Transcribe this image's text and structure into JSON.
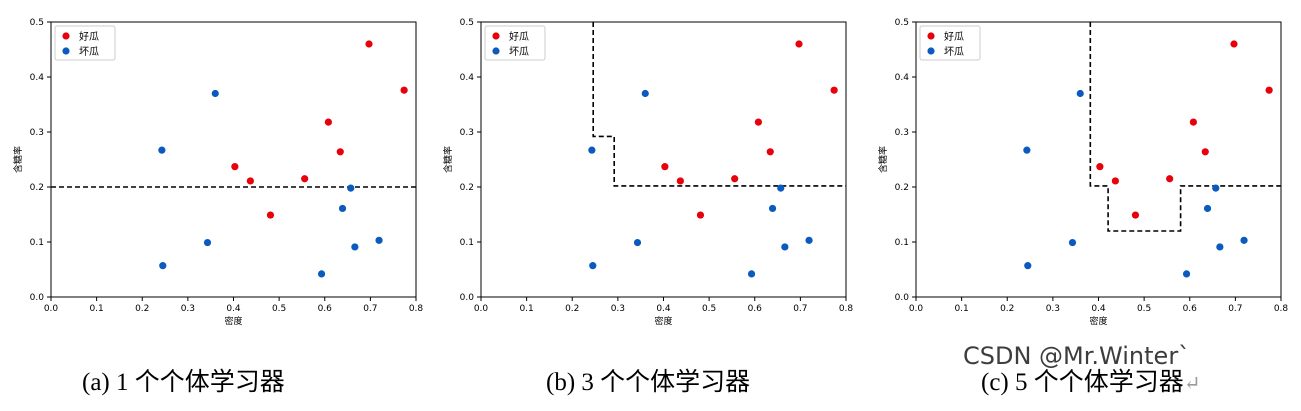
{
  "chart_data": [
    {
      "type": "scatter",
      "title": "",
      "xlabel": "密度",
      "ylabel": "含糖率",
      "xlim": [
        0.0,
        0.8
      ],
      "ylim": [
        0.0,
        0.5
      ],
      "xticks": [
        0.0,
        0.1,
        0.2,
        0.3,
        0.4,
        0.5,
        0.6,
        0.7,
        0.8
      ],
      "yticks": [
        0.0,
        0.1,
        0.2,
        0.3,
        0.4,
        0.5
      ],
      "xtick_labels": [
        "0.0",
        "0.1",
        "0.2",
        "0.3",
        "0.4",
        "0.5",
        "0.6",
        "0.7",
        "0.8"
      ],
      "ytick_labels": [
        "0.0",
        "0.1",
        "0.2",
        "0.3",
        "0.4",
        "0.5"
      ],
      "legend": [
        {
          "name": "好瓜",
          "color": "#e8000b"
        },
        {
          "name": "坏瓜",
          "color": "#0b5bbf"
        }
      ],
      "series": [
        {
          "name": "好瓜",
          "color": "#e8000b",
          "points": [
            [
              0.697,
              0.46
            ],
            [
              0.774,
              0.376
            ],
            [
              0.634,
              0.264
            ],
            [
              0.608,
              0.318
            ],
            [
              0.556,
              0.215
            ],
            [
              0.403,
              0.237
            ],
            [
              0.481,
              0.149
            ],
            [
              0.437,
              0.211
            ]
          ]
        },
        {
          "name": "坏瓜",
          "color": "#0b5bbf",
          "points": [
            [
              0.666,
              0.091
            ],
            [
              0.243,
              0.267
            ],
            [
              0.245,
              0.057
            ],
            [
              0.343,
              0.099
            ],
            [
              0.639,
              0.161
            ],
            [
              0.657,
              0.198
            ],
            [
              0.36,
              0.37
            ],
            [
              0.593,
              0.042
            ],
            [
              0.719,
              0.103
            ]
          ]
        }
      ],
      "boundary": [
        [
          0.0,
          0.2
        ],
        [
          0.8,
          0.2
        ]
      ],
      "caption": "(a) 1 个个体学习器"
    },
    {
      "type": "scatter",
      "title": "",
      "xlabel": "密度",
      "ylabel": "含糖率",
      "xlim": [
        0.0,
        0.8
      ],
      "ylim": [
        0.0,
        0.5
      ],
      "xticks": [
        0.0,
        0.1,
        0.2,
        0.3,
        0.4,
        0.5,
        0.6,
        0.7,
        0.8
      ],
      "yticks": [
        0.0,
        0.1,
        0.2,
        0.3,
        0.4,
        0.5
      ],
      "xtick_labels": [
        "0.0",
        "0.1",
        "0.2",
        "0.3",
        "0.4",
        "0.5",
        "0.6",
        "0.7",
        "0.8"
      ],
      "ytick_labels": [
        "0.0",
        "0.1",
        "0.2",
        "0.3",
        "0.4",
        "0.5"
      ],
      "legend": [
        {
          "name": "好瓜",
          "color": "#e8000b"
        },
        {
          "name": "坏瓜",
          "color": "#0b5bbf"
        }
      ],
      "series": [
        {
          "name": "好瓜",
          "color": "#e8000b",
          "points": [
            [
              0.697,
              0.46
            ],
            [
              0.774,
              0.376
            ],
            [
              0.634,
              0.264
            ],
            [
              0.608,
              0.318
            ],
            [
              0.556,
              0.215
            ],
            [
              0.403,
              0.237
            ],
            [
              0.481,
              0.149
            ],
            [
              0.437,
              0.211
            ]
          ]
        },
        {
          "name": "坏瓜",
          "color": "#0b5bbf",
          "points": [
            [
              0.666,
              0.091
            ],
            [
              0.243,
              0.267
            ],
            [
              0.245,
              0.057
            ],
            [
              0.343,
              0.099
            ],
            [
              0.639,
              0.161
            ],
            [
              0.657,
              0.198
            ],
            [
              0.36,
              0.37
            ],
            [
              0.593,
              0.042
            ],
            [
              0.719,
              0.103
            ]
          ]
        }
      ],
      "boundary": [
        [
          0.246,
          0.5
        ],
        [
          0.246,
          0.292
        ],
        [
          0.292,
          0.292
        ],
        [
          0.292,
          0.202
        ],
        [
          0.8,
          0.202
        ]
      ],
      "caption": "(b) 3 个个体学习器"
    },
    {
      "type": "scatter",
      "title": "",
      "xlabel": "密度",
      "ylabel": "含糖率",
      "xlim": [
        0.0,
        0.8
      ],
      "ylim": [
        0.0,
        0.5
      ],
      "xticks": [
        0.0,
        0.1,
        0.2,
        0.3,
        0.4,
        0.5,
        0.6,
        0.7,
        0.8
      ],
      "yticks": [
        0.0,
        0.1,
        0.2,
        0.3,
        0.4,
        0.5
      ],
      "xtick_labels": [
        "0.0",
        "0.1",
        "0.2",
        "0.3",
        "0.4",
        "0.5",
        "0.6",
        "0.7",
        "0.8"
      ],
      "ytick_labels": [
        "0.0",
        "0.1",
        "0.2",
        "0.3",
        "0.4",
        "0.5"
      ],
      "legend": [
        {
          "name": "好瓜",
          "color": "#e8000b"
        },
        {
          "name": "坏瓜",
          "color": "#0b5bbf"
        }
      ],
      "series": [
        {
          "name": "好瓜",
          "color": "#e8000b",
          "points": [
            [
              0.697,
              0.46
            ],
            [
              0.774,
              0.376
            ],
            [
              0.634,
              0.264
            ],
            [
              0.608,
              0.318
            ],
            [
              0.556,
              0.215
            ],
            [
              0.403,
              0.237
            ],
            [
              0.481,
              0.149
            ],
            [
              0.437,
              0.211
            ]
          ]
        },
        {
          "name": "坏瓜",
          "color": "#0b5bbf",
          "points": [
            [
              0.666,
              0.091
            ],
            [
              0.243,
              0.267
            ],
            [
              0.245,
              0.057
            ],
            [
              0.343,
              0.099
            ],
            [
              0.639,
              0.161
            ],
            [
              0.657,
              0.198
            ],
            [
              0.36,
              0.37
            ],
            [
              0.593,
              0.042
            ],
            [
              0.719,
              0.103
            ]
          ]
        }
      ],
      "boundary": [
        [
          0.382,
          0.5
        ],
        [
          0.382,
          0.202
        ],
        [
          0.421,
          0.202
        ],
        [
          0.421,
          0.12
        ],
        [
          0.58,
          0.12
        ],
        [
          0.58,
          0.202
        ],
        [
          0.8,
          0.202
        ]
      ],
      "caption": "(c) 5 个个体学习器"
    }
  ],
  "watermark": "CSDN @Mr.Winter`",
  "return_mark": "↵",
  "colors": {
    "good": "#e8000b",
    "bad": "#0b5bbf",
    "boundary": "#000000"
  }
}
